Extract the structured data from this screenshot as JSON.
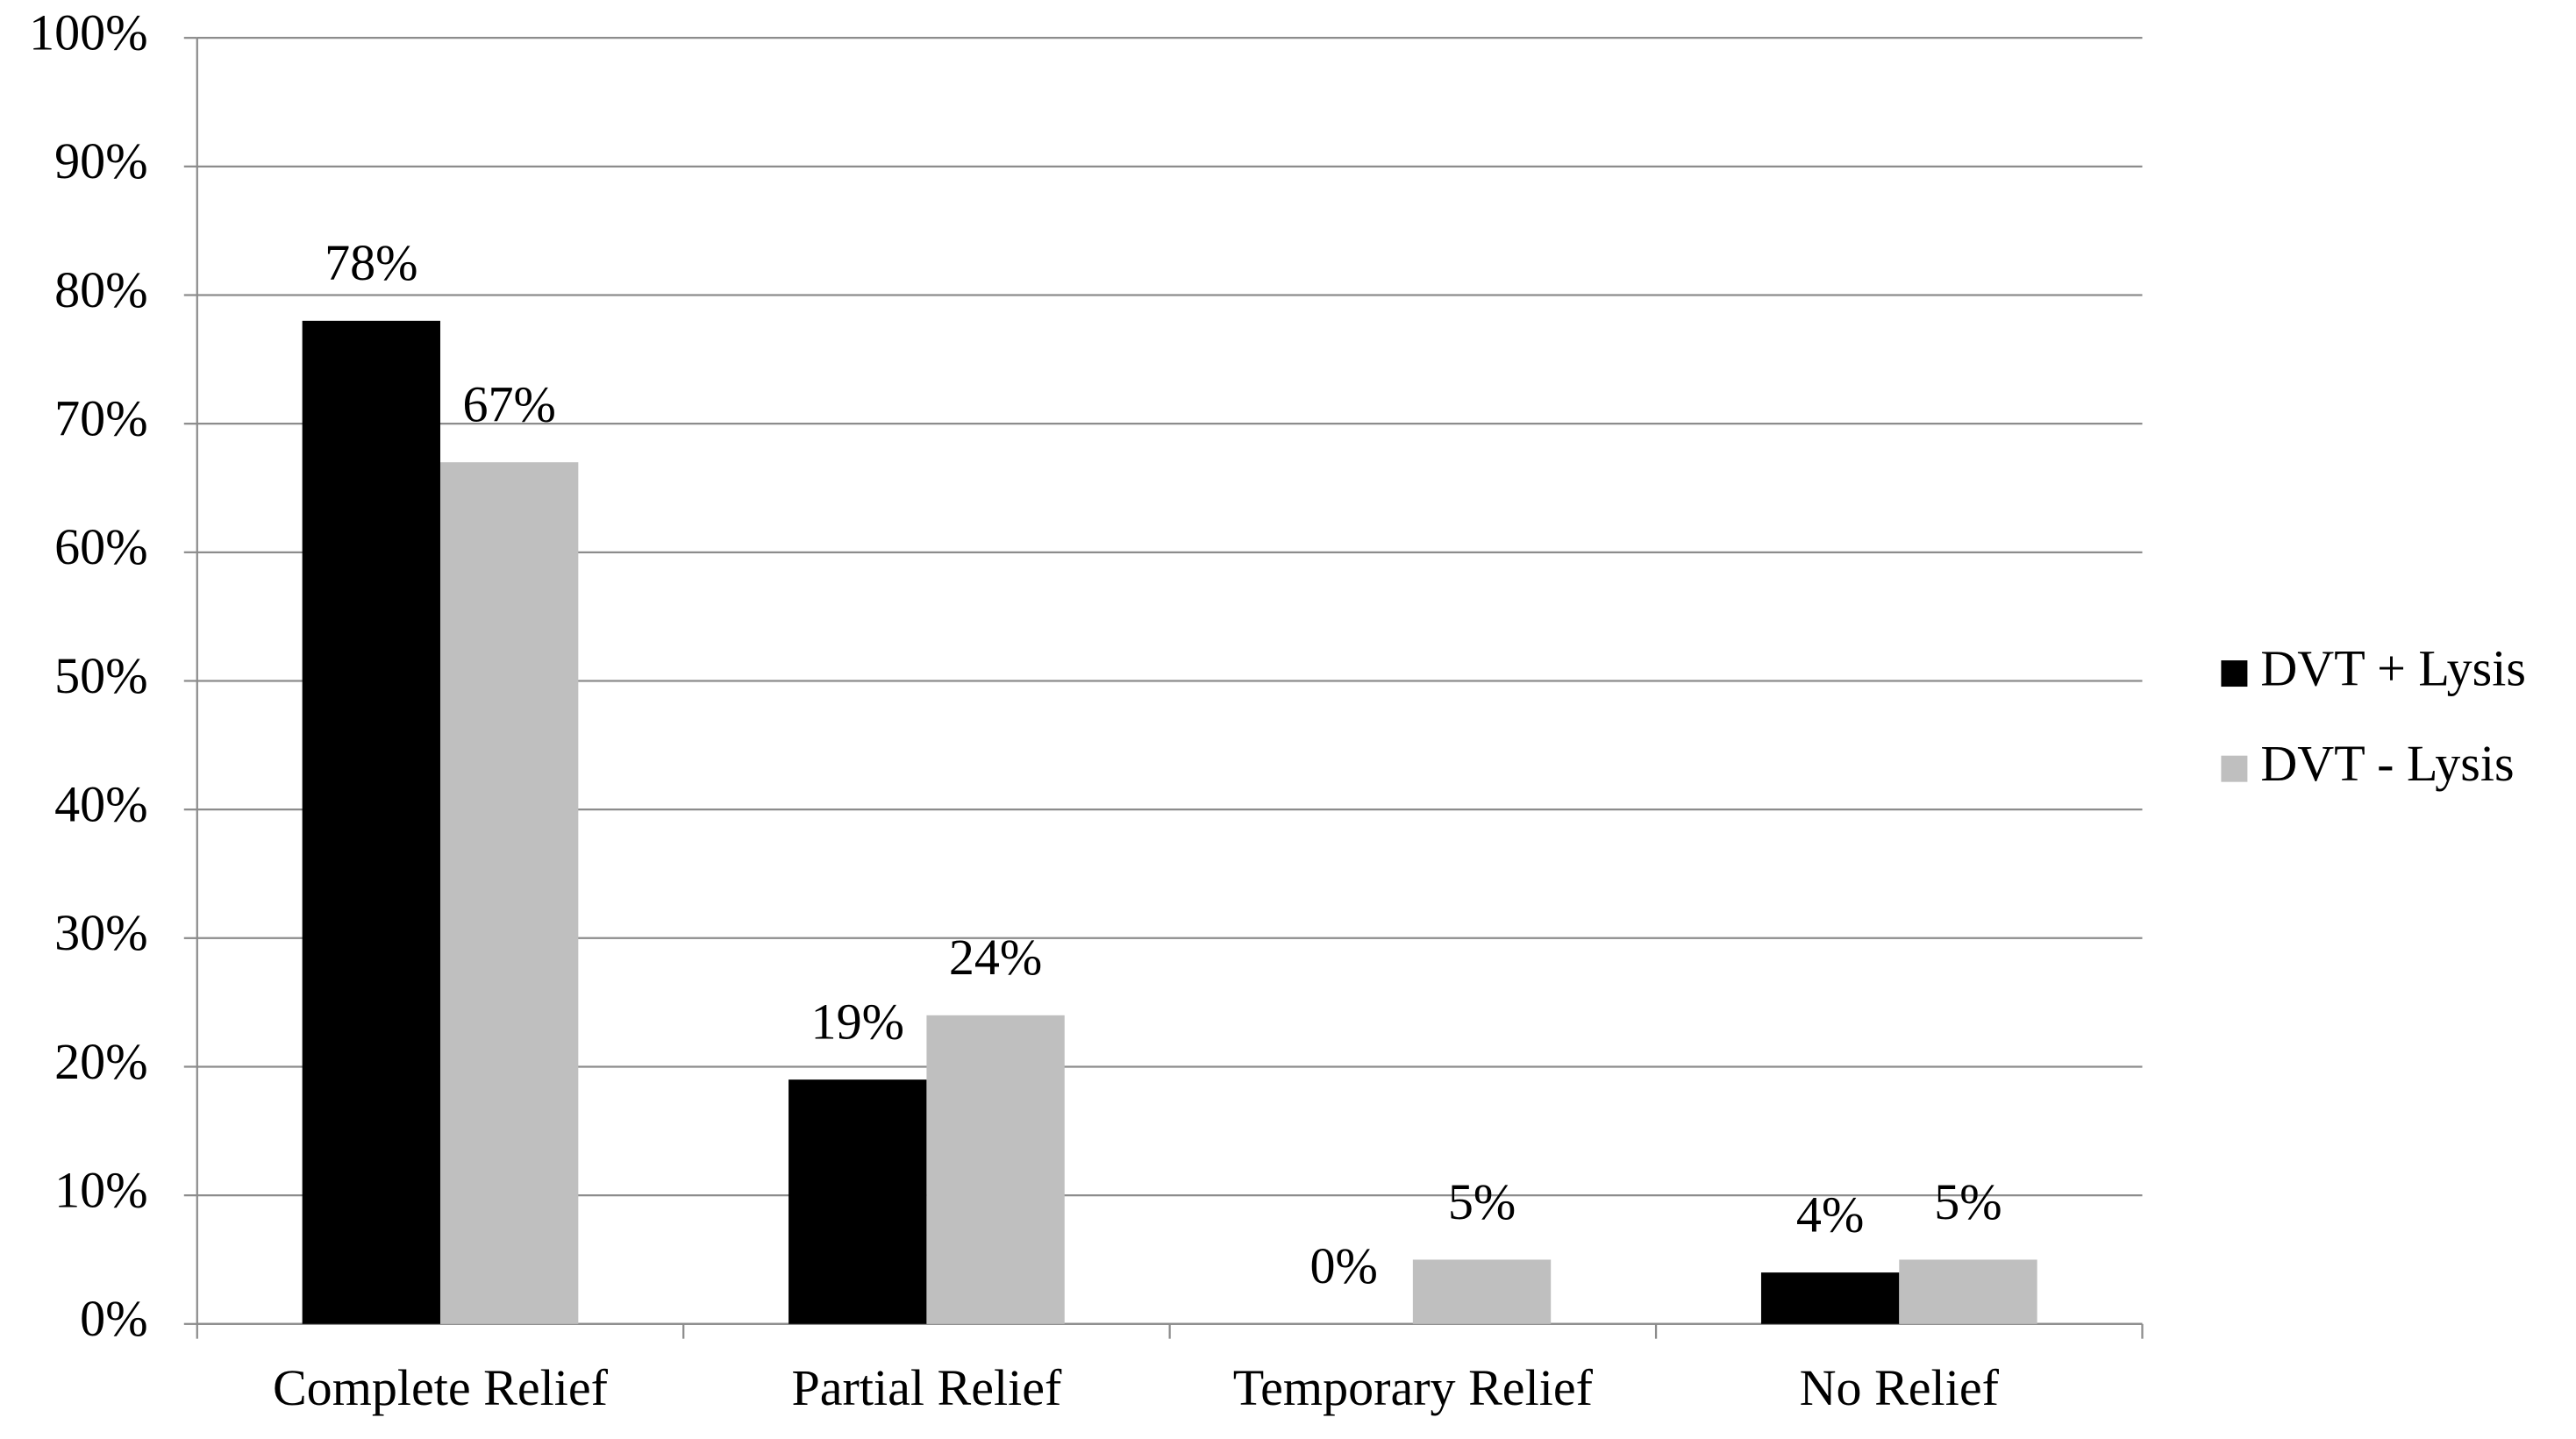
{
  "chart_data": {
    "type": "bar",
    "categories": [
      "Complete Relief",
      "Partial Relief",
      "Temporary Relief",
      "No Relief"
    ],
    "series": [
      {
        "name": "DVT + Lysis",
        "color": "#000000",
        "values": [
          78,
          19,
          0,
          4
        ],
        "value_labels": [
          "78%",
          "19%",
          "0%",
          "4%"
        ]
      },
      {
        "name": "DVT - Lysis",
        "color": "#bfbfbf",
        "values": [
          67,
          24,
          5,
          5
        ],
        "value_labels": [
          "67%",
          "24%",
          "5%",
          "5%"
        ]
      }
    ],
    "ylim": [
      0,
      100
    ],
    "yticks": [
      {
        "value": 0,
        "label": "0%"
      },
      {
        "value": 10,
        "label": "10%"
      },
      {
        "value": 20,
        "label": "20%"
      },
      {
        "value": 30,
        "label": "30%"
      },
      {
        "value": 40,
        "label": "40%"
      },
      {
        "value": 50,
        "label": "50%"
      },
      {
        "value": 60,
        "label": "60%"
      },
      {
        "value": 70,
        "label": "70%"
      },
      {
        "value": 80,
        "label": "80%"
      },
      {
        "value": 90,
        "label": "90%"
      },
      {
        "value": 100,
        "label": "100%"
      }
    ],
    "grid": true,
    "legend": "right"
  }
}
